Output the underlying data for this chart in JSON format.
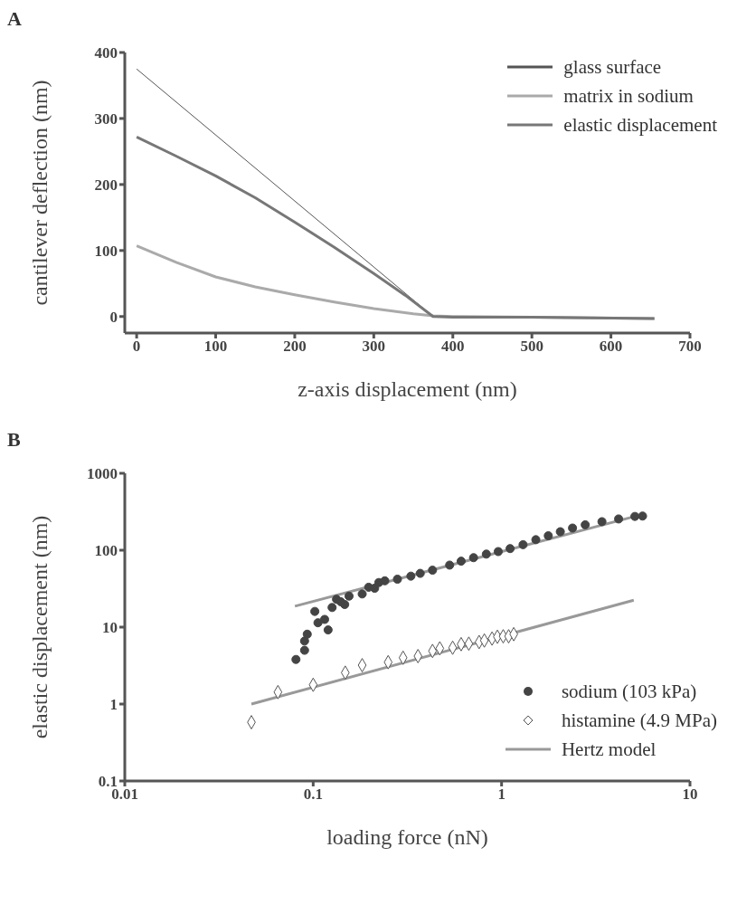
{
  "chart_data": [
    {
      "type": "line",
      "title": "A",
      "xlabel": "z-axis displacement  (nm)",
      "ylabel": "cantilever deflection (nm)",
      "xlim": [
        -15,
        700
      ],
      "xticks": [
        0,
        100,
        200,
        300,
        400,
        500,
        600,
        700
      ],
      "ylim": [
        -25,
        400
      ],
      "yticks": [
        0,
        100,
        200,
        300,
        400
      ],
      "legend": "top right",
      "marker": "none",
      "line_style": "solid",
      "series": [
        {
          "name": "glass surface",
          "color": "#555555",
          "x": [
            0,
            375
          ],
          "values": [
            375,
            0
          ]
        },
        {
          "name": "matrix in sodium",
          "color": "#aaaaaa",
          "x": [
            0,
            50,
            100,
            150,
            200,
            250,
            300,
            350,
            375,
            400,
            500,
            655
          ],
          "values": [
            107,
            82,
            60,
            45,
            33,
            22,
            12,
            4,
            1,
            0,
            -1,
            -3
          ]
        },
        {
          "name": "elastic displacement",
          "color": "#777777",
          "x": [
            0,
            50,
            100,
            150,
            200,
            250,
            300,
            340,
            375,
            400,
            500,
            655
          ],
          "values": [
            272,
            243,
            213,
            180,
            143,
            105,
            65,
            32,
            0,
            -1,
            -1,
            -3
          ]
        }
      ]
    },
    {
      "type": "scatter",
      "title": "B",
      "xlabel": "loading force (nN)",
      "ylabel": "elastic displacement (nm)",
      "log": "xy",
      "xlim": [
        0.01,
        10
      ],
      "xticks": [
        0.01,
        0.1,
        1,
        10
      ],
      "ylim": [
        0.1,
        1000
      ],
      "yticks": [
        0.1,
        1,
        10,
        100,
        1000
      ],
      "legend": "bottom right",
      "series": [
        {
          "name": "sodium (103 kPa)",
          "color": "#444444",
          "marker": "circle",
          "x": [
            0.081,
            0.09,
            0.09,
            0.093,
            0.102,
            0.106,
            0.115,
            0.12,
            0.126,
            0.133,
            0.14,
            0.147,
            0.155,
            0.182,
            0.197,
            0.212,
            0.223,
            0.24,
            0.28,
            0.33,
            0.37,
            0.43,
            0.53,
            0.61,
            0.71,
            0.83,
            0.96,
            1.11,
            1.3,
            1.52,
            1.77,
            2.05,
            2.38,
            2.78,
            3.41,
            4.18,
            5.1,
            5.6
          ],
          "values": [
            3.8,
            5.0,
            6.6,
            8.1,
            16,
            11.4,
            12.6,
            9.2,
            18,
            23,
            21.4,
            19.7,
            25.3,
            27,
            33,
            32,
            38,
            40,
            42,
            46,
            50,
            55,
            64,
            72,
            80,
            89,
            96,
            105,
            118,
            137,
            154,
            174,
            194,
            214,
            235,
            255,
            275,
            278
          ]
        },
        {
          "name": "histamine (4.9 MPa)",
          "color": "#555555",
          "marker": "diamond",
          "x": [
            0.047,
            0.065,
            0.1,
            0.148,
            0.182,
            0.25,
            0.3,
            0.36,
            0.43,
            0.47,
            0.55,
            0.61,
            0.67,
            0.76,
            0.81,
            0.89,
            0.95,
            1.02,
            1.09,
            1.16
          ],
          "values": [
            0.58,
            1.43,
            1.78,
            2.56,
            3.2,
            3.5,
            4.0,
            4.2,
            4.9,
            5.3,
            5.4,
            6.0,
            6.1,
            6.4,
            6.7,
            7.1,
            7.5,
            7.6,
            7.6,
            8.1
          ]
        },
        {
          "name": "Hertz model",
          "type": "line",
          "color": "#999999",
          "x": [
            0.047,
            5.03
          ],
          "values": [
            1.0,
            22.4
          ]
        },
        {
          "type": "line",
          "color": "#999999",
          "x": [
            0.08,
            5.1
          ],
          "values": [
            18.7,
            275
          ]
        }
      ]
    }
  ]
}
